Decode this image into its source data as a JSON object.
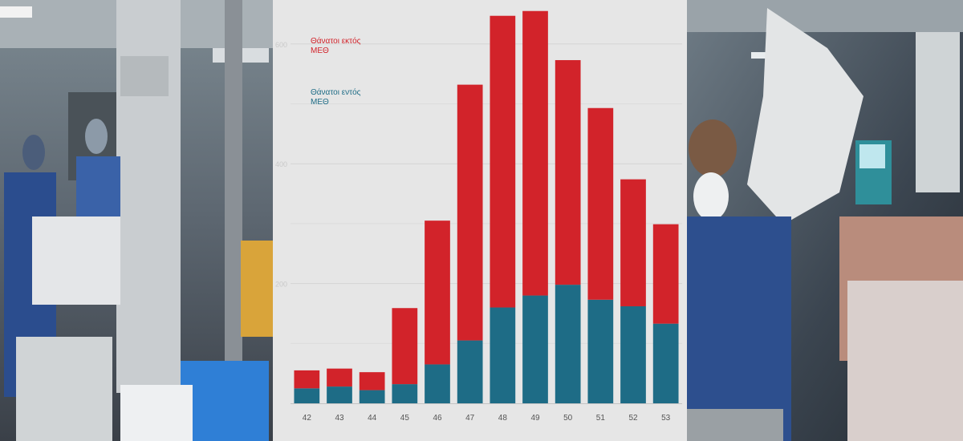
{
  "chart_data": {
    "type": "bar",
    "stacked": true,
    "categories": [
      "42",
      "43",
      "44",
      "45",
      "46",
      "47",
      "48",
      "49",
      "50",
      "51",
      "52",
      "53"
    ],
    "series": [
      {
        "name": "Θάνατοι εντός ΜΕΘ",
        "color": "#1e6c86",
        "values": [
          25,
          28,
          22,
          32,
          65,
          105,
          160,
          180,
          198,
          173,
          162,
          133
        ]
      },
      {
        "name": "Θάνατοι εκτός ΜΕΘ",
        "color": "#d2232a",
        "values": [
          30,
          30,
          30,
          127,
          240,
          427,
          487,
          475,
          375,
          320,
          212,
          166
        ]
      }
    ],
    "y_tick_labels": [
      "200",
      "400",
      "600"
    ],
    "ylim": [
      0,
      660
    ],
    "grid": true,
    "legend_position": "top-left"
  },
  "legend": {
    "outside": {
      "line1": "Θάνατοι εκτός",
      "line2": "ΜΕΘ"
    },
    "inside": {
      "line1": "Θάνατοι εντός",
      "line2": "ΜΕΘ"
    }
  },
  "photos": {
    "left": "icu-staff-photo",
    "right": "icu-patient-photo"
  }
}
